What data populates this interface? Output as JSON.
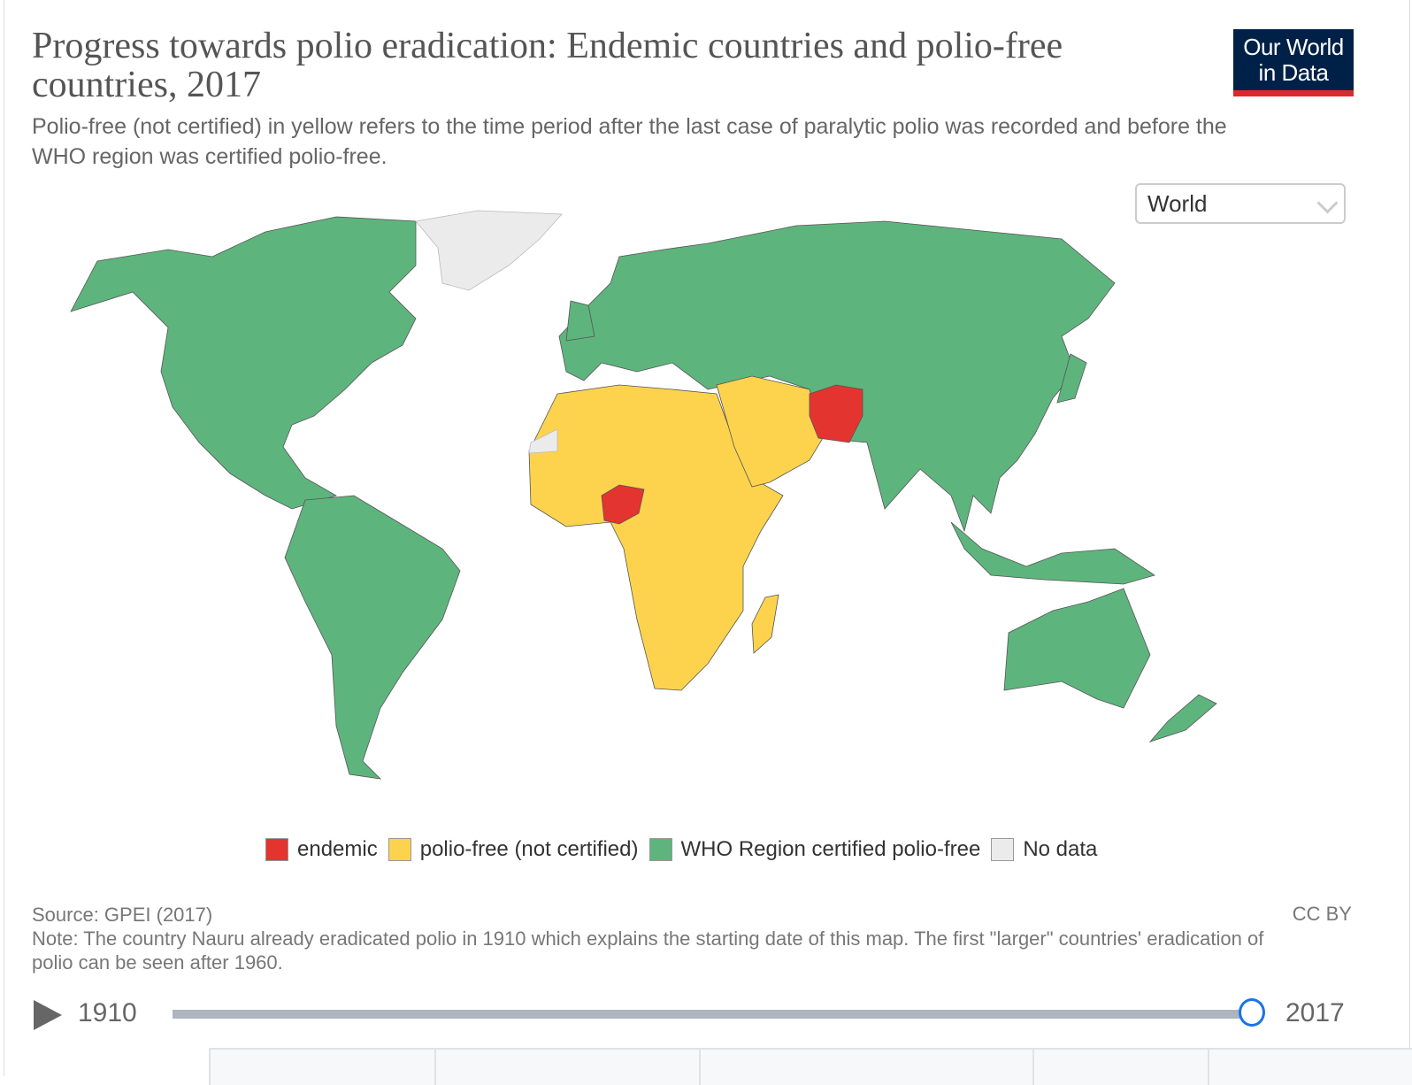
{
  "header": {
    "title": "Progress towards polio eradication: Endemic countries and polio-free countries, 2017",
    "subtitle": "Polio-free (not certified) in yellow refers to the time period after the last case of paralytic polio was recorded and before the WHO region was certified polio-free.",
    "logo": "Our World in Data"
  },
  "region_select": {
    "value": "World",
    "icon": "chevron-down-icon"
  },
  "colors": {
    "endemic": "#e3342f",
    "polio_free_not_certified": "#fdd34e",
    "certified": "#5eb47d",
    "no_data": "#ebebeb",
    "logo_bg": "#002147",
    "logo_bar": "#dc2a2a",
    "slider_accent": "#1a73e8"
  },
  "legend": [
    {
      "label": "endemic",
      "color": "#e3342f"
    },
    {
      "label": "polio-free (not certified)",
      "color": "#fdd34e"
    },
    {
      "label": "WHO Region certified polio-free",
      "color": "#5eb47d"
    },
    {
      "label": "No data",
      "color": "#ebebeb"
    }
  ],
  "map_data": {
    "year": 2017,
    "endemic": [
      "Nigeria",
      "Afghanistan",
      "Pakistan"
    ],
    "polio_free_not_certified": [
      "Africa (rest)",
      "Arabian Peninsula",
      "Madagascar"
    ],
    "no_data": [
      "Greenland",
      "Western Sahara"
    ]
  },
  "footer": {
    "source": "Source: GPEI (2017)",
    "note": "Note: The country Nauru already eradicated polio in 1910 which explains the starting date of this map. The first \"larger\" countries' eradication of polio can be seen after 1960.",
    "license": "CC BY"
  },
  "timeline": {
    "start": "1910",
    "end": "2017",
    "current": "2017",
    "play_icon": "play-icon"
  }
}
